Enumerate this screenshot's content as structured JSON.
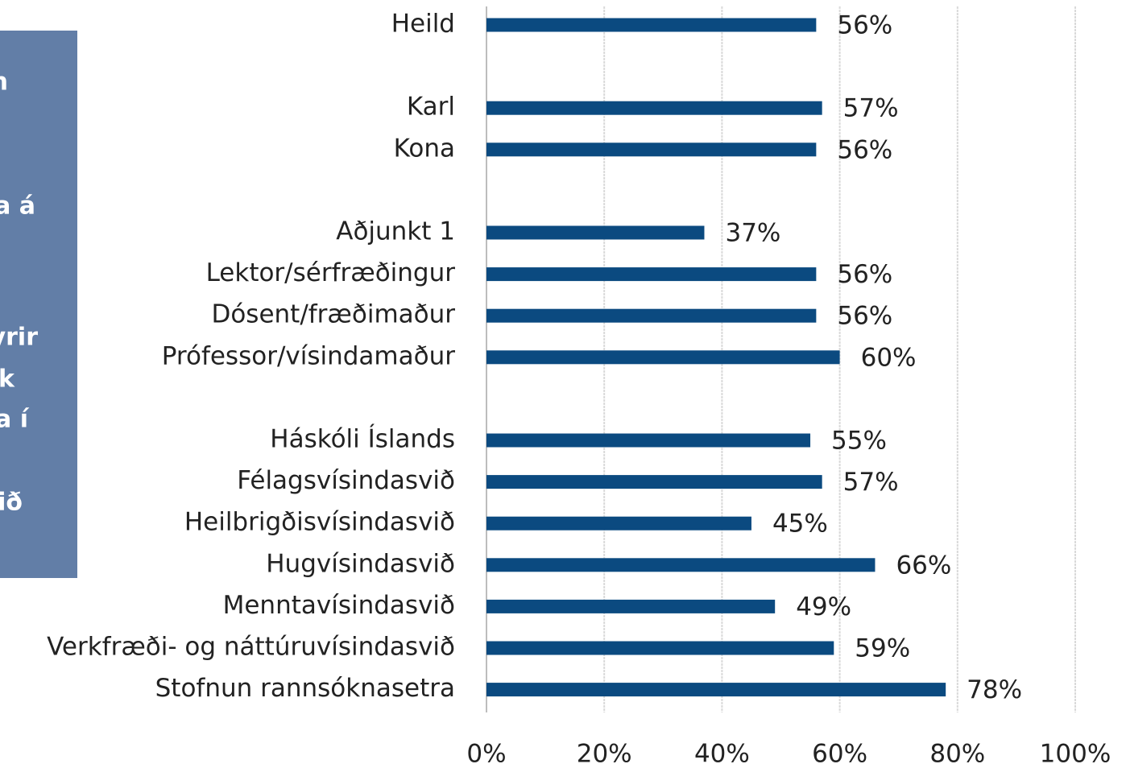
{
  "side_panel": {
    "lines": [
      "n",
      "a á",
      "yrir",
      "k",
      "a í",
      "ið"
    ]
  },
  "chart_data": {
    "type": "barh",
    "categories": [
      "Heild",
      null,
      "Karl",
      "Kona",
      null,
      "Aðjunkt 1",
      "Lektor/sérfræðingur",
      "Dósent/fræðimaður",
      "Prófessor/vísindamaður",
      null,
      "Háskóli Íslands",
      "Félagsvísindasvið",
      "Heilbrigðisvísindasvið",
      "Hugvísindasvið",
      "Menntavísindasvið",
      "Verkfræði- og náttúruvísindasvið",
      "Stofnun rannsóknasetra"
    ],
    "values": [
      56,
      null,
      57,
      56,
      null,
      37,
      56,
      56,
      60,
      null,
      55,
      57,
      45,
      66,
      49,
      59,
      78
    ],
    "value_labels": [
      "56%",
      null,
      "57%",
      "56%",
      null,
      "37%",
      "56%",
      "56%",
      "60%",
      null,
      "55%",
      "57%",
      "45%",
      "66%",
      "49%",
      "59%",
      "78%"
    ],
    "color": "#0b4a80",
    "xlim": [
      0,
      100
    ],
    "xticks": [
      {
        "value": 0,
        "label": "0%"
      },
      {
        "value": 20,
        "label": "20%"
      },
      {
        "value": 40,
        "label": "40%"
      },
      {
        "value": 60,
        "label": "60%"
      },
      {
        "value": 80,
        "label": "80%"
      },
      {
        "value": 100,
        "label": "100%"
      }
    ],
    "grid": true
  }
}
